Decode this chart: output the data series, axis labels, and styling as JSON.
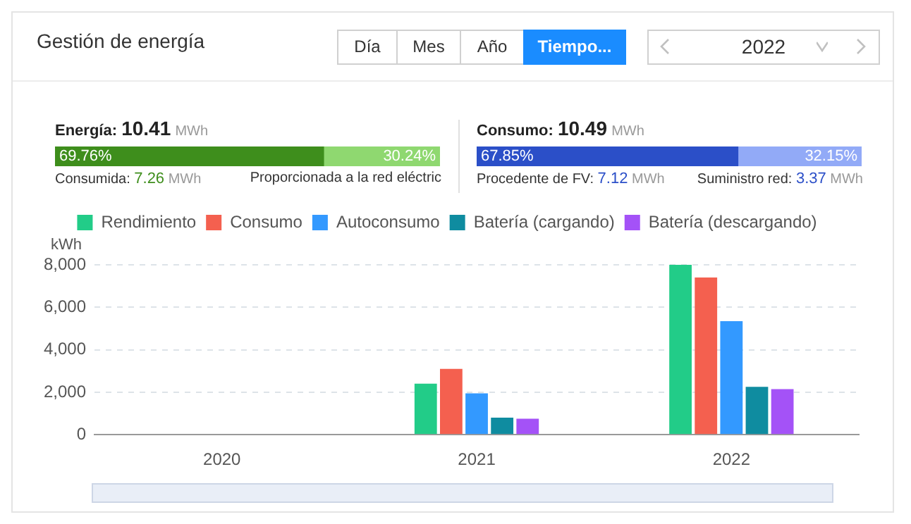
{
  "chart_data": [
    {
      "type": "other",
      "title": "Gestión de energía",
      "annotations": [
        "Día",
        "Mes",
        "Año",
        "Tiempo...",
        "2022"
      ]
    },
    {
      "type": "bar",
      "orientation": "horizontal",
      "stacked": true,
      "title": "Energía: 10.41 MWh",
      "categories": [
        null
      ],
      "xlim": [
        0,
        100
      ],
      "tick_labels": false,
      "legend": false,
      "series": [
        {
          "color": "#3e8e1c",
          "values": [
            69.76
          ],
          "value_labels": [
            "69.76%"
          ]
        },
        {
          "color": "#8fd870",
          "values": [
            30.24
          ],
          "value_labels": [
            "30.24%"
          ]
        }
      ],
      "annotations": [
        "Consumida: 7.26 MWh",
        "Proporcionada a la red eléctric"
      ]
    },
    {
      "type": "bar",
      "orientation": "horizontal",
      "stacked": true,
      "title": "Consumo: 10.49 MWh",
      "categories": [
        null
      ],
      "xlim": [
        0,
        100
      ],
      "tick_labels": false,
      "legend": false,
      "series": [
        {
          "color": "#2b4fc8",
          "values": [
            67.85
          ],
          "value_labels": [
            "67.85%"
          ]
        },
        {
          "color": "#92aaf7",
          "values": [
            32.15
          ],
          "value_labels": [
            "32.15%"
          ]
        }
      ],
      "annotations": [
        "Procedente de FV: 7.12 MWh",
        "Suministro red: 3.37 MWh"
      ]
    },
    {
      "type": "bar",
      "ylabel": "kWh",
      "categories": [
        "2020",
        "2021",
        "2022"
      ],
      "ylim": [
        0,
        8000
      ],
      "yticks": [
        0,
        {
          "value": 2000,
          "label": "2,000"
        },
        {
          "value": 4000,
          "label": "4,000"
        },
        {
          "value": 6000,
          "label": "6,000"
        },
        {
          "value": 8000,
          "label": "8,000"
        }
      ],
      "grid": "y",
      "legend": "top",
      "series": [
        {
          "name": "Rendimiento",
          "color": "#22cc88",
          "values": [
            0,
            2400,
            8000
          ]
        },
        {
          "name": "Consumo",
          "color": "#f4604f",
          "values": [
            0,
            3100,
            7400
          ]
        },
        {
          "name": "Autoconsumo",
          "color": "#3399ff",
          "values": [
            0,
            1950,
            5350
          ]
        },
        {
          "name": "Batería (cargando)",
          "color": "#0f8ca0",
          "values": [
            0,
            800,
            2250
          ]
        },
        {
          "name": "Batería (descargando)",
          "color": "#a452f7",
          "values": [
            0,
            750,
            2150
          ]
        }
      ]
    }
  ]
}
